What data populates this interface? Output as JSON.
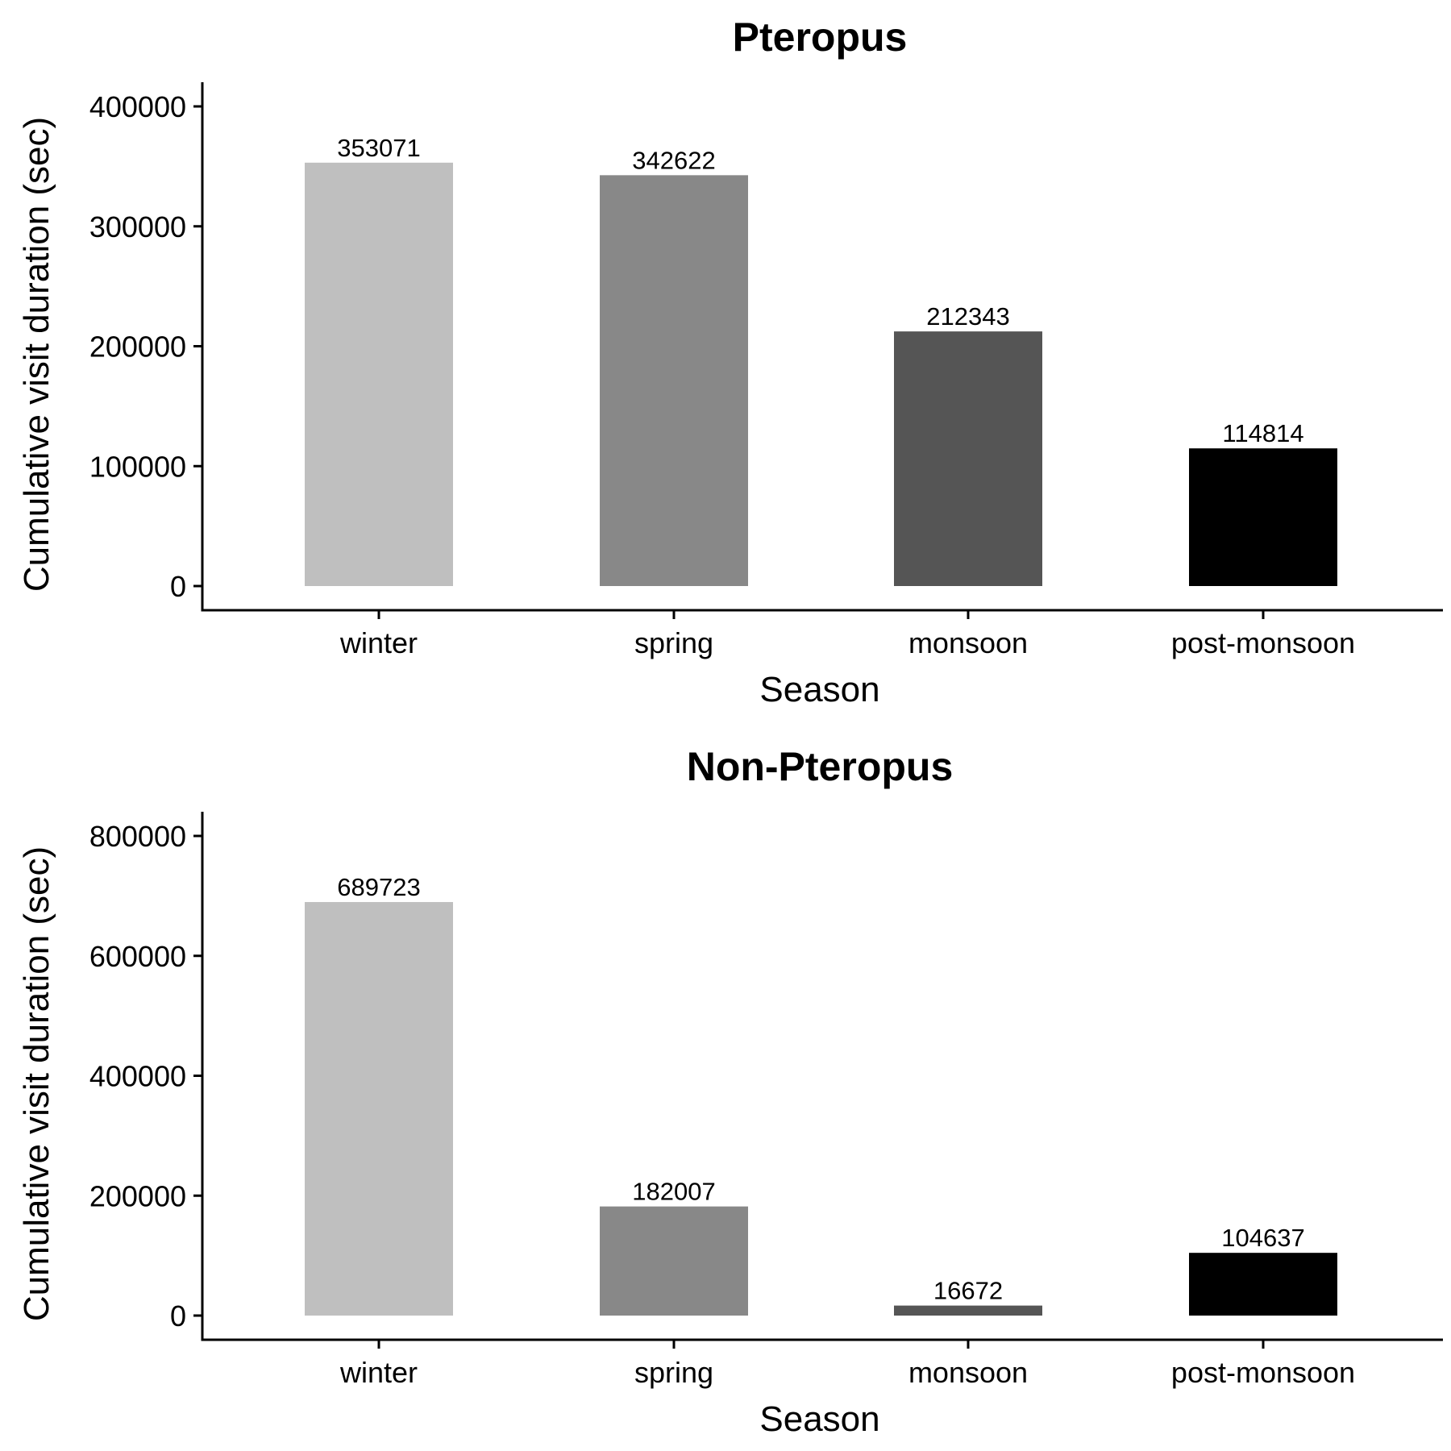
{
  "chart_data": [
    {
      "type": "bar",
      "title": "Pteropus",
      "xlabel": "Season",
      "ylabel": "Cumulative visit duration (sec)",
      "categories": [
        "winter",
        "spring",
        "monsoon",
        "post-monsoon"
      ],
      "values": [
        353071,
        342622,
        212343,
        114814
      ],
      "data_labels": [
        "353071",
        "342622",
        "212343",
        "114814"
      ],
      "colors": [
        "#bfbfbf",
        "#888888",
        "#555555",
        "#000000"
      ],
      "ylim": [
        0,
        420000
      ],
      "yticks": [
        0,
        100000,
        200000,
        300000,
        400000
      ],
      "ytick_labels": [
        "0",
        "100000",
        "200000",
        "300000",
        "400000"
      ],
      "grid": false,
      "legend": "none"
    },
    {
      "type": "bar",
      "title": "Non-Pteropus",
      "xlabel": "Season",
      "ylabel": "Cumulative visit duration (sec)",
      "categories": [
        "winter",
        "spring",
        "monsoon",
        "post-monsoon"
      ],
      "values": [
        689723,
        182007,
        16672,
        104637
      ],
      "data_labels": [
        "689723",
        "182007",
        "16672",
        "104637"
      ],
      "colors": [
        "#bfbfbf",
        "#888888",
        "#555555",
        "#000000"
      ],
      "ylim": [
        0,
        840000
      ],
      "yticks": [
        0,
        200000,
        400000,
        600000,
        800000
      ],
      "ytick_labels": [
        "0",
        "200000",
        "400000",
        "600000",
        "800000"
      ],
      "grid": false,
      "legend": "none"
    }
  ]
}
